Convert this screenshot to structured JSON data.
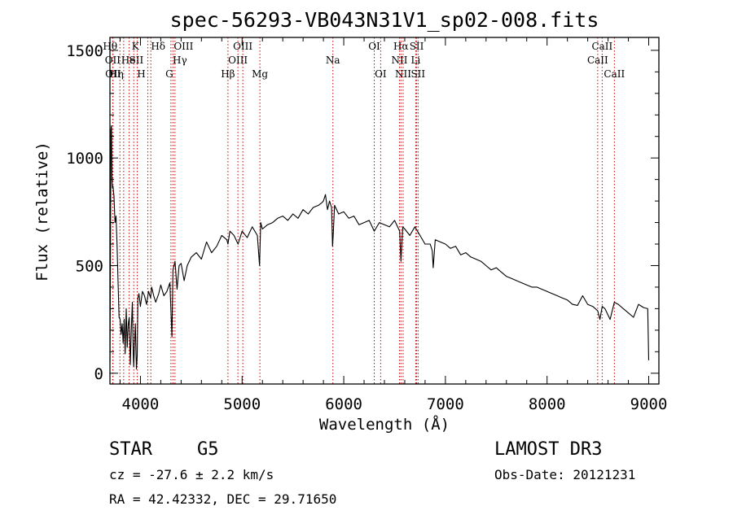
{
  "chart_data": {
    "type": "line",
    "title": "spec-56293-VB043N31V1_sp02-008.fits",
    "xlabel": "Wavelength (Å)",
    "ylabel": "Flux (relative)",
    "xlim": [
      3700,
      9100
    ],
    "ylim": [
      -50,
      1560
    ],
    "xticks": [
      4000,
      5000,
      6000,
      7000,
      8000,
      9000
    ],
    "yticks": [
      0,
      500,
      1000,
      1500
    ],
    "xtick_labels": [
      "4000",
      "5000",
      "6000",
      "7000",
      "8000",
      "9000"
    ],
    "ytick_labels": [
      "0",
      "500",
      "1000",
      "1500"
    ],
    "grid": false,
    "series": [
      {
        "name": "spectrum",
        "x": [
          3700,
          3705,
          3710,
          3715,
          3720,
          3725,
          3730,
          3740,
          3750,
          3760,
          3770,
          3780,
          3790,
          3800,
          3810,
          3820,
          3830,
          3840,
          3850,
          3860,
          3870,
          3880,
          3890,
          3900,
          3910,
          3920,
          3930,
          3934,
          3940,
          3950,
          3960,
          3968,
          3975,
          3985,
          4000,
          4020,
          4040,
          4060,
          4080,
          4100,
          4110,
          4130,
          4150,
          4180,
          4200,
          4230,
          4260,
          4290,
          4310,
          4320,
          4340,
          4360,
          4380,
          4400,
          4430,
          4460,
          4500,
          4550,
          4600,
          4650,
          4700,
          4750,
          4800,
          4850,
          4861,
          4880,
          4920,
          4960,
          5000,
          5050,
          5100,
          5150,
          5172,
          5183,
          5200,
          5250,
          5300,
          5350,
          5400,
          5450,
          5500,
          5550,
          5600,
          5650,
          5700,
          5750,
          5780,
          5800,
          5820,
          5840,
          5860,
          5880,
          5890,
          5896,
          5910,
          5950,
          6000,
          6050,
          6100,
          6150,
          6200,
          6250,
          6300,
          6350,
          6400,
          6450,
          6500,
          6550,
          6563,
          6580,
          6600,
          6650,
          6700,
          6750,
          6800,
          6850,
          6870,
          6880,
          6900,
          6950,
          7000,
          7050,
          7100,
          7150,
          7200,
          7250,
          7300,
          7350,
          7400,
          7450,
          7500,
          7550,
          7600,
          7650,
          7700,
          7750,
          7800,
          7850,
          7900,
          7950,
          8000,
          8050,
          8100,
          8150,
          8200,
          8250,
          8300,
          8350,
          8400,
          8450,
          8498,
          8520,
          8542,
          8570,
          8620,
          8662,
          8700,
          8750,
          8800,
          8850,
          8900,
          8950,
          8990,
          9000
        ],
        "y": [
          50,
          480,
          1130,
          1150,
          900,
          860,
          870,
          820,
          700,
          730,
          600,
          420,
          260,
          250,
          180,
          230,
          140,
          250,
          90,
          300,
          120,
          230,
          260,
          40,
          200,
          330,
          80,
          30,
          120,
          230,
          20,
          80,
          350,
          370,
          310,
          380,
          360,
          320,
          380,
          350,
          400,
          360,
          330,
          370,
          410,
          360,
          380,
          420,
          170,
          480,
          520,
          390,
          500,
          510,
          430,
          500,
          540,
          560,
          530,
          610,
          560,
          590,
          640,
          620,
          600,
          660,
          640,
          600,
          660,
          630,
          680,
          640,
          500,
          700,
          670,
          690,
          700,
          720,
          730,
          710,
          740,
          720,
          760,
          740,
          770,
          780,
          790,
          800,
          830,
          760,
          800,
          770,
          590,
          640,
          780,
          740,
          750,
          720,
          730,
          690,
          700,
          710,
          660,
          700,
          690,
          680,
          710,
          660,
          520,
          680,
          670,
          640,
          680,
          640,
          600,
          600,
          570,
          490,
          620,
          610,
          600,
          580,
          590,
          550,
          560,
          540,
          530,
          520,
          500,
          480,
          490,
          470,
          450,
          440,
          430,
          420,
          410,
          400,
          400,
          390,
          380,
          370,
          360,
          350,
          340,
          320,
          315,
          360,
          320,
          310,
          290,
          250,
          310,
          300,
          250,
          330,
          320,
          300,
          280,
          260,
          320,
          305,
          300,
          60
        ]
      }
    ],
    "lines": [
      {
        "name": "OII",
        "x": 3727,
        "row": 2,
        "dx": 0
      },
      {
        "name": "OII",
        "x": 3730,
        "row": 3,
        "dx": 0
      },
      {
        "name": "Hθ",
        "x": 3798,
        "row": 1,
        "dx": -12
      },
      {
        "name": "Hη",
        "x": 3835,
        "row": 3,
        "dx": -9
      },
      {
        "name": "He",
        "x": 3889,
        "row": 2,
        "dx": -1
      },
      {
        "name": "K",
        "x": 3934,
        "row": 1,
        "dx": 2
      },
      {
        "name": "H",
        "x": 3968,
        "row": 3,
        "dx": 5
      },
      {
        "name": "SII",
        "x": 4072,
        "row": 2,
        "dx": -14
      },
      {
        "name": "Hδ",
        "x": 4102,
        "row": 1,
        "dx": 9
      },
      {
        "name": "OIII",
        "x": 4320,
        "row": 1,
        "dx": 13
      },
      {
        "name": "Hγ",
        "x": 4340,
        "row": 2,
        "dx": 6
      },
      {
        "name": "G",
        "x": 4300,
        "row": 3,
        "dx": -2
      },
      {
        "name": "Hβ",
        "x": 4861,
        "row": 3,
        "dx": 0
      },
      {
        "name": "OIII",
        "x": 4959,
        "row": 2,
        "dx": 0
      },
      {
        "name": "OIII",
        "x": 5007,
        "row": 1,
        "dx": 0
      },
      {
        "name": "Mg",
        "x": 5175,
        "row": 3,
        "dx": 0
      },
      {
        "name": "Na",
        "x": 5893,
        "row": 2,
        "dx": 0
      },
      {
        "name": "OI",
        "x": 6300,
        "row": 1,
        "dx": 0
      },
      {
        "name": "OI",
        "x": 6363,
        "row": 3,
        "dx": 0
      },
      {
        "name": "NII",
        "x": 6548,
        "row": 2,
        "dx": 0
      },
      {
        "name": "Hα",
        "x": 6563,
        "row": 1,
        "dx": 0
      },
      {
        "name": "NII",
        "x": 6584,
        "row": 3,
        "dx": 0
      },
      {
        "name": "Li",
        "x": 6708,
        "row": 2,
        "dx": 0
      },
      {
        "name": "SII",
        "x": 6717,
        "row": 1,
        "dx": 0
      },
      {
        "name": "SII",
        "x": 6731,
        "row": 3,
        "dx": 0
      },
      {
        "name": "CaII",
        "x": 8498,
        "row": 2,
        "dx": 0
      },
      {
        "name": "CaII",
        "x": 8542,
        "row": 1,
        "dx": 0
      },
      {
        "name": "CaII",
        "x": 8662,
        "row": 3,
        "dx": 0
      }
    ]
  },
  "info": {
    "object_class": "STAR",
    "subclass": "G5",
    "survey": "LAMOST DR3",
    "redshift": "cz = -27.6 ± 2.2 km/s",
    "obs_date": "Obs-Date: 20121231",
    "coords": "RA =  42.42332, DEC =  29.71650"
  },
  "colors": {
    "line_marker": "#cc0000",
    "spectrum": "#000000",
    "axes": "#000000"
  }
}
